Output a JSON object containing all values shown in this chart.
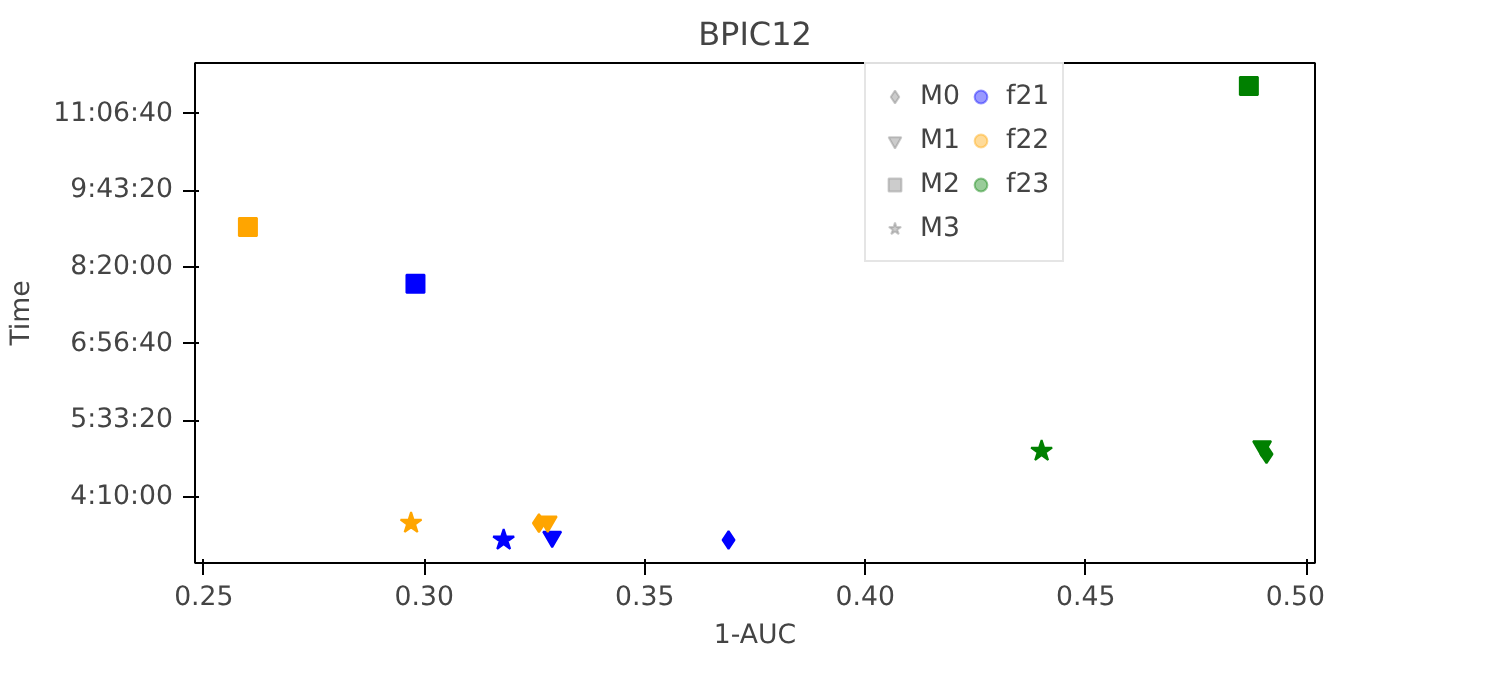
{
  "chart_data": {
    "type": "scatter",
    "title": "BPIC12",
    "xlabel": "1-AUC",
    "ylabel": "Time",
    "xlim": [
      0.248,
      0.502
    ],
    "xticks": [
      {
        "value": 0.25,
        "label": "0.25"
      },
      {
        "value": 0.3,
        "label": "0.30"
      },
      {
        "value": 0.35,
        "label": "0.35"
      },
      {
        "value": 0.4,
        "label": "0.40"
      },
      {
        "value": 0.45,
        "label": "0.45"
      },
      {
        "value": 0.5,
        "label": "0.50"
      }
    ],
    "ylim": [
      10700,
      43300
    ],
    "yticks": [
      {
        "value": 15000,
        "label": "4:10:00"
      },
      {
        "value": 20000,
        "label": "5:33:20"
      },
      {
        "value": 25000,
        "label": "6:56:40"
      },
      {
        "value": 30000,
        "label": "8:20:00"
      },
      {
        "value": 35000,
        "label": "9:43:20"
      },
      {
        "value": 40000,
        "label": "11:06:40"
      }
    ],
    "grid": false,
    "legend": "top right",
    "series": [
      {
        "name": "M0",
        "color": "#808080",
        "marker": "diamond"
      },
      {
        "name": "M1",
        "color": "#808080",
        "marker": "triangle_down"
      },
      {
        "name": "M2",
        "color": "#808080",
        "marker": "square"
      },
      {
        "name": "M3",
        "color": "#808080",
        "marker": "star"
      },
      {
        "name": "f21",
        "color": "#0000ff",
        "marker": "circle"
      },
      {
        "name": "f22",
        "color": "#ffa500",
        "marker": "circle"
      },
      {
        "name": "f23",
        "color": "#008000",
        "marker": "circle"
      },
      {
        "color": "#0000ff",
        "marker": "diamond",
        "x": [
          0.369
        ],
        "values": [
          12200
        ]
      },
      {
        "color": "#0000ff",
        "marker": "triangle_down",
        "x": [
          0.329
        ],
        "values": [
          12400
        ]
      },
      {
        "color": "#0000ff",
        "marker": "square",
        "x": [
          0.298
        ],
        "values": [
          28900
        ]
      },
      {
        "color": "#0000ff",
        "marker": "star",
        "x": [
          0.318
        ],
        "values": [
          12200
        ]
      },
      {
        "color": "#ffa500",
        "marker": "diamond",
        "x": [
          0.326
        ],
        "values": [
          13300
        ]
      },
      {
        "color": "#ffa500",
        "marker": "triangle_down",
        "x": [
          0.328
        ],
        "values": [
          13400
        ]
      },
      {
        "color": "#ffa500",
        "marker": "square",
        "x": [
          0.26
        ],
        "values": [
          32600
        ]
      },
      {
        "color": "#ffa500",
        "marker": "star",
        "x": [
          0.297
        ],
        "values": [
          13300
        ]
      },
      {
        "color": "#008000",
        "marker": "diamond",
        "x": [
          0.491
        ],
        "values": [
          17800
        ]
      },
      {
        "color": "#008000",
        "marker": "triangle_down",
        "x": [
          0.49
        ],
        "values": [
          18300
        ]
      },
      {
        "color": "#008000",
        "marker": "square",
        "x": [
          0.487
        ],
        "values": [
          41800
        ]
      },
      {
        "color": "#008000",
        "marker": "star",
        "x": [
          0.44
        ],
        "values": [
          18000
        ]
      }
    ]
  }
}
